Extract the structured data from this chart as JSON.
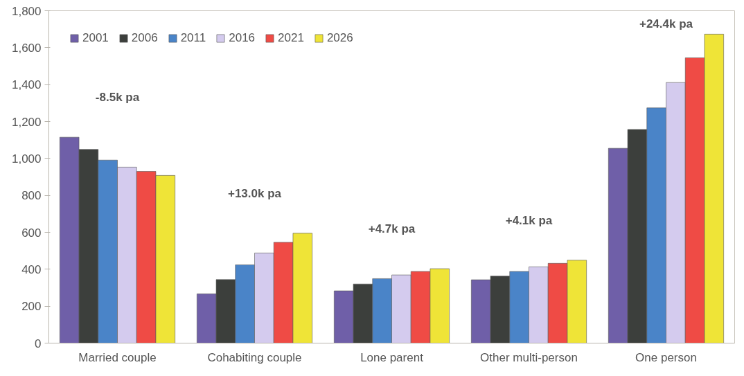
{
  "chart_data": {
    "type": "bar",
    "categories": [
      "Married couple",
      "Cohabiting couple",
      "Lone parent",
      "Other multi-person",
      "One person"
    ],
    "series": [
      {
        "name": "2001",
        "color": "#6f5fa8",
        "values": [
          1115,
          267,
          283,
          343,
          1055
        ]
      },
      {
        "name": "2006",
        "color": "#3c3f3c",
        "values": [
          1049,
          344,
          320,
          363,
          1157
        ]
      },
      {
        "name": "2011",
        "color": "#4a84c8",
        "values": [
          991,
          424,
          349,
          388,
          1274
        ]
      },
      {
        "name": "2016",
        "color": "#d4cbee",
        "values": [
          953,
          488,
          369,
          413,
          1411
        ]
      },
      {
        "name": "2021",
        "color": "#ef4b45",
        "values": [
          930,
          546,
          388,
          432,
          1545
        ]
      },
      {
        "name": "2026",
        "color": "#efe437",
        "values": [
          908,
          595,
          403,
          449,
          1673
        ]
      }
    ],
    "annotations": [
      "-8.5k pa",
      "+13.0k pa",
      "+4.7k pa",
      "+4.1k pa",
      "+24.4k pa"
    ],
    "ylim": [
      0,
      1800
    ],
    "yticks": [
      {
        "value": 0,
        "label": "0"
      },
      {
        "value": 200,
        "label": "200"
      },
      {
        "value": 400,
        "label": "400"
      },
      {
        "value": 600,
        "label": "600"
      },
      {
        "value": 800,
        "label": "800"
      },
      {
        "value": 1000,
        "label": "1,000"
      },
      {
        "value": 1200,
        "label": "1,200"
      },
      {
        "value": 1400,
        "label": "1,400"
      },
      {
        "value": 1600,
        "label": "1,600"
      },
      {
        "value": 1800,
        "label": "1,800"
      }
    ],
    "grid": false,
    "legend": "top left"
  }
}
